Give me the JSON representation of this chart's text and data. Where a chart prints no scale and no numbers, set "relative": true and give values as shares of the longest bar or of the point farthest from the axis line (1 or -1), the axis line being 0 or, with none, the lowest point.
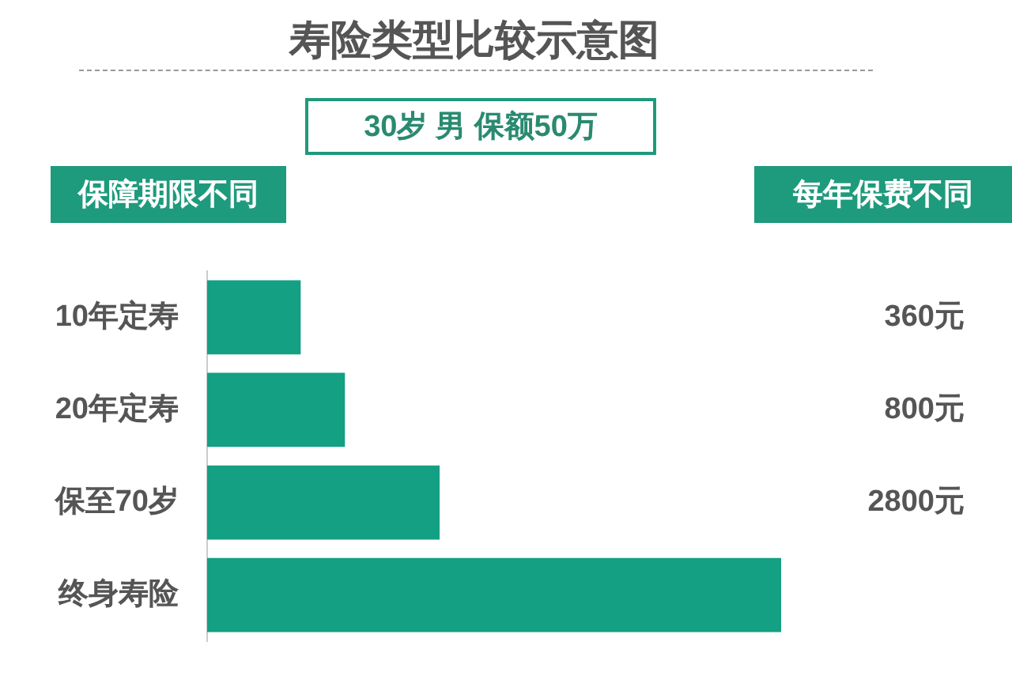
{
  "chart_data": {
    "type": "bar",
    "orientation": "horizontal",
    "relative": true,
    "title": "寿险类型比较示意图",
    "annotations": [
      "30岁 男 保额50万",
      "保障期限不同",
      "每年保费不同",
      "360元",
      "800元",
      "2800元"
    ],
    "categories": [
      "10年定寿",
      "20年定寿",
      "保至70岁",
      "终身寿险"
    ],
    "values": [
      0.163,
      0.24,
      0.405,
      1
    ],
    "color": "#14a082"
  }
}
